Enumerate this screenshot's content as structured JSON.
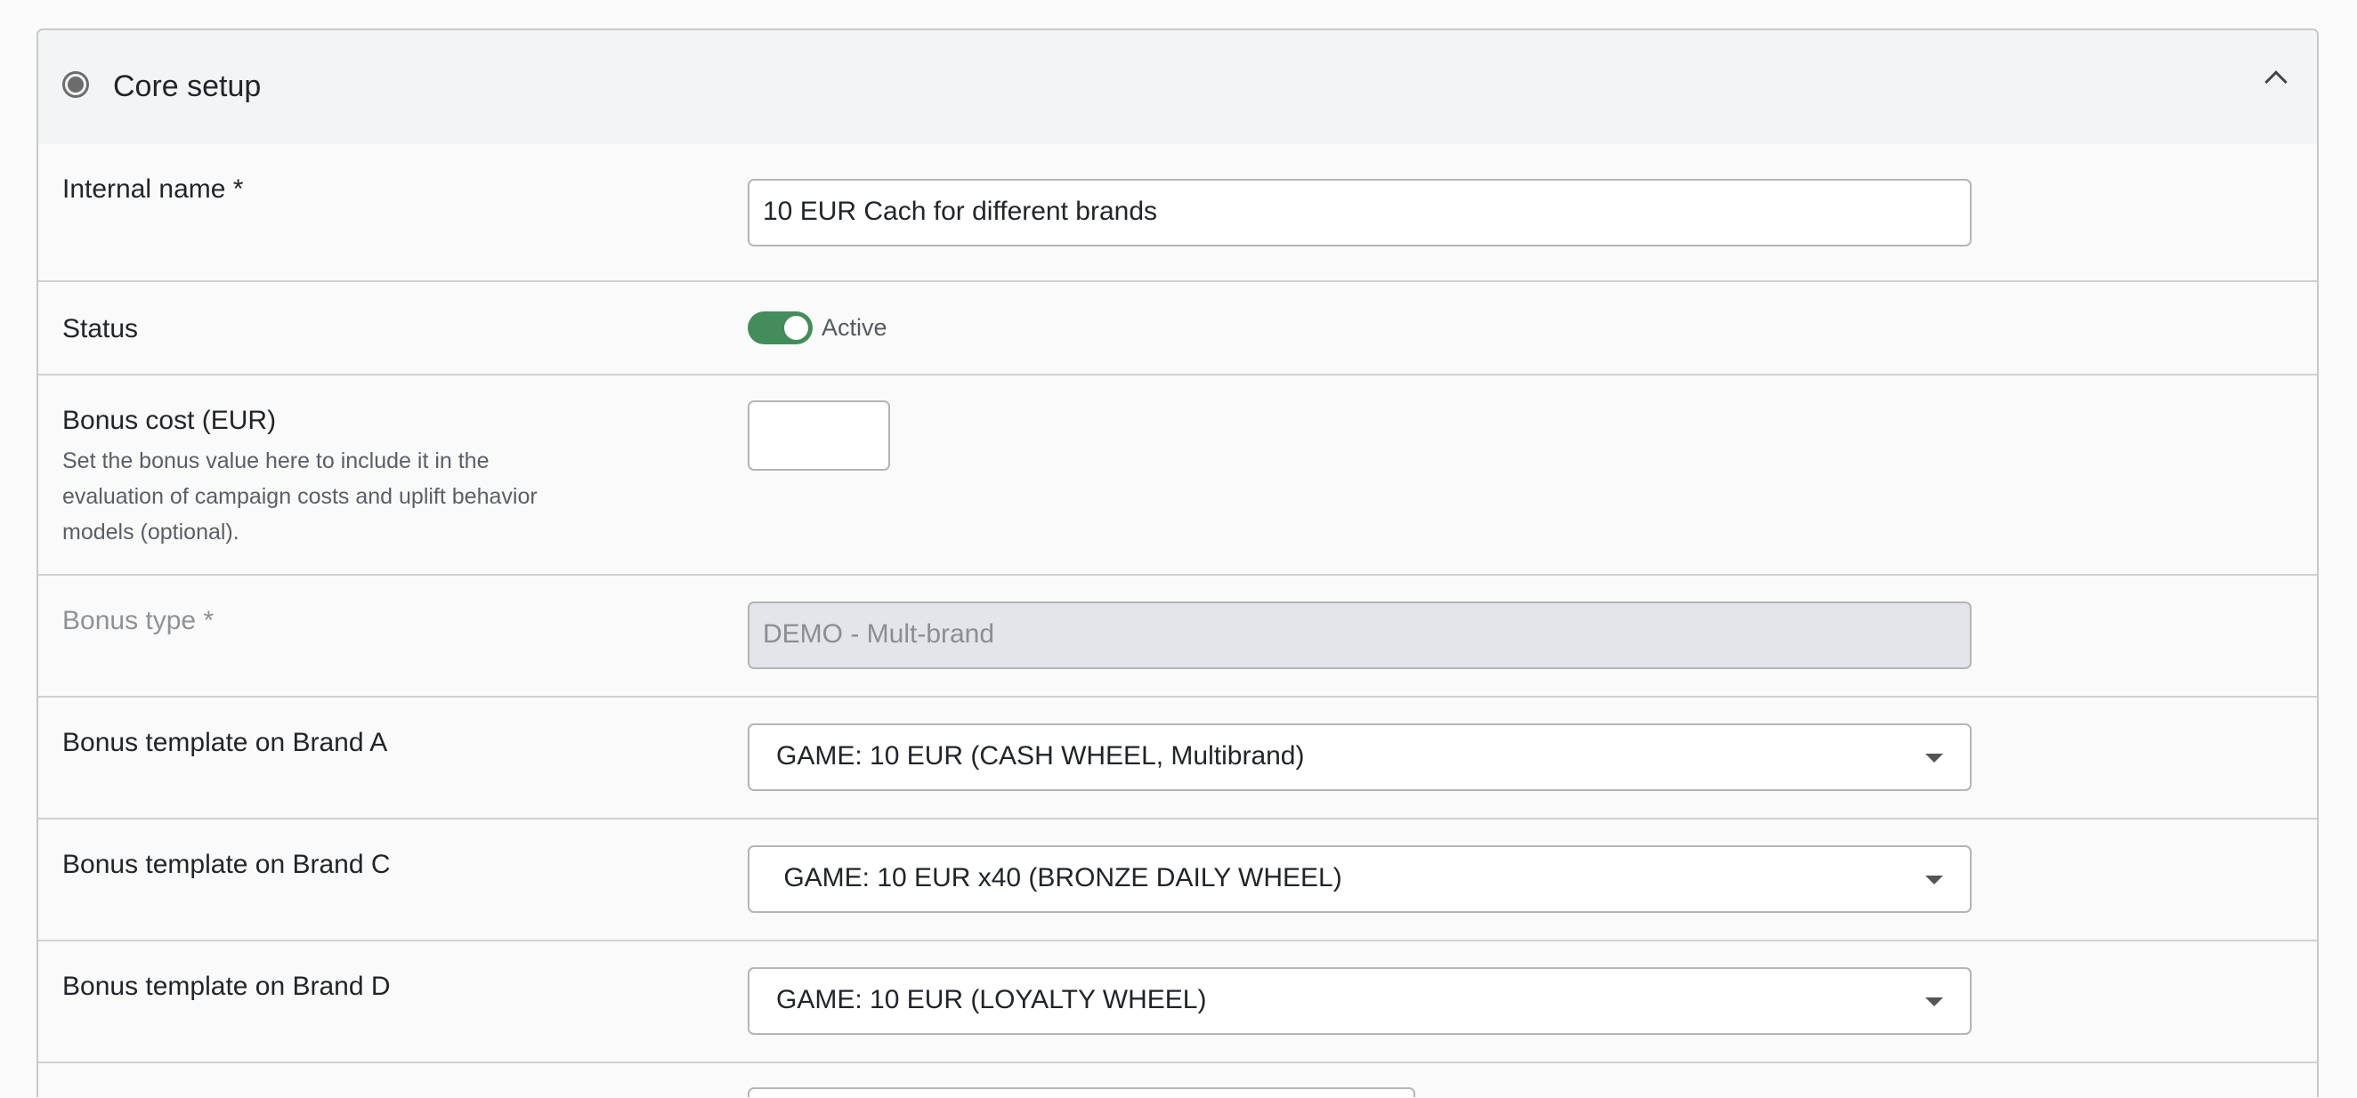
{
  "section": {
    "title": "Core setup",
    "expanded": true
  },
  "fields": {
    "internal_name": {
      "label": "Internal name *",
      "value": "10 EUR Cach for different brands"
    },
    "status": {
      "label": "Status",
      "toggle_label": "Active",
      "on": true,
      "color": "#438d5b"
    },
    "bonus_cost": {
      "label": "Bonus cost (EUR)",
      "help": "Set the bonus value here to include it in the evaluation of campaign costs and uplift behavior models (optional).",
      "value": ""
    },
    "bonus_type": {
      "label": "Bonus type *",
      "value": "DEMO - Mult-brand"
    },
    "brand_a": {
      "label": "Bonus template on Brand A",
      "value": "GAME: 10 EUR (CASH WHEEL, Multibrand)"
    },
    "brand_c": {
      "label": "Bonus template on Brand C",
      "value": " GAME: 10 EUR x40 (BRONZE DAILY WHEEL)"
    },
    "brand_d": {
      "label": "Bonus template on Brand D",
      "value": "GAME: 10 EUR (LOYALTY WHEEL)"
    }
  }
}
